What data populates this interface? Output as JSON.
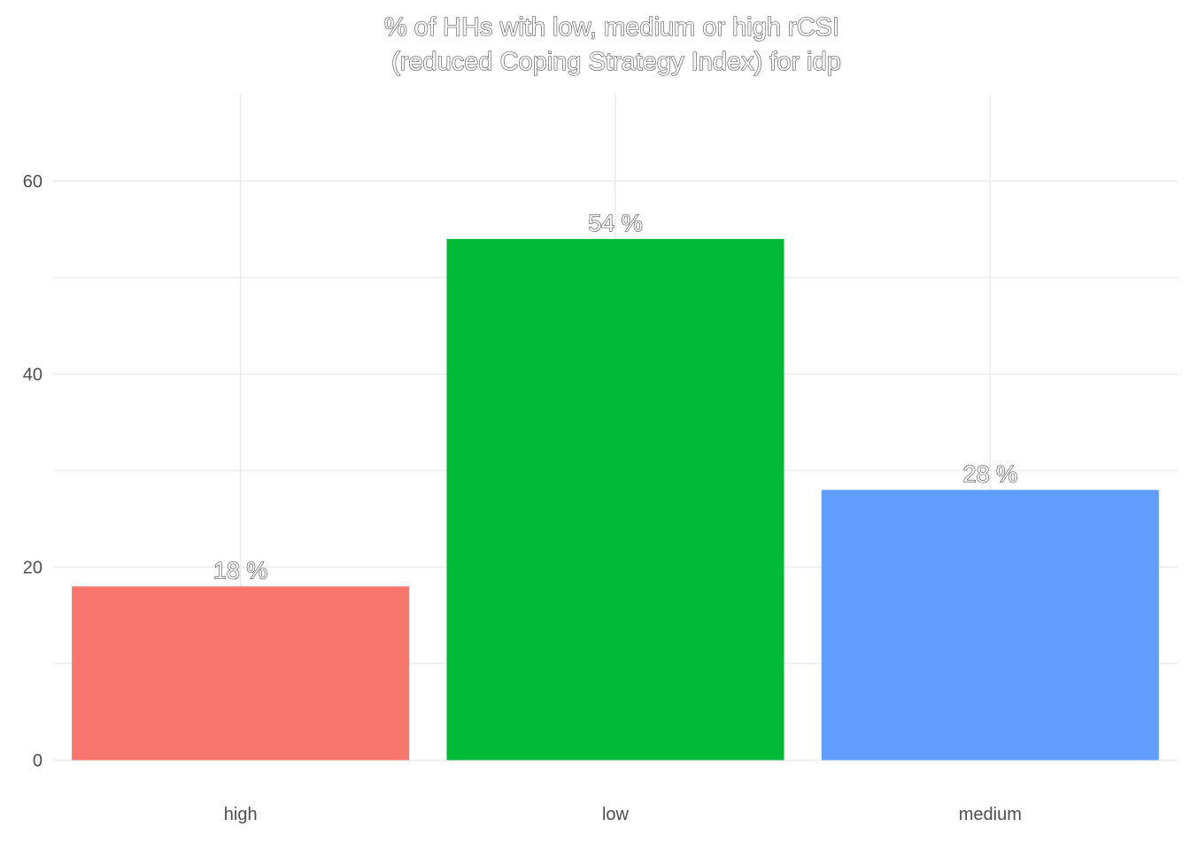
{
  "chart_data": {
    "type": "bar",
    "title_lines": [
      "% of HHs with low, medium or high rCSI",
      "(reduced Coping Strategy Index) for idp"
    ],
    "categories": [
      "high",
      "low",
      "medium"
    ],
    "values": [
      18,
      54,
      28
    ],
    "data_labels": [
      "18 %",
      "54 %",
      "28 %"
    ],
    "colors": [
      "#F8766D",
      "#00BA38",
      "#619CFF"
    ],
    "xlabel": "",
    "ylabel": "",
    "ylim": [
      0,
      69
    ],
    "yticks": [
      0,
      20,
      40,
      60
    ],
    "grid": true,
    "legend": "none"
  }
}
